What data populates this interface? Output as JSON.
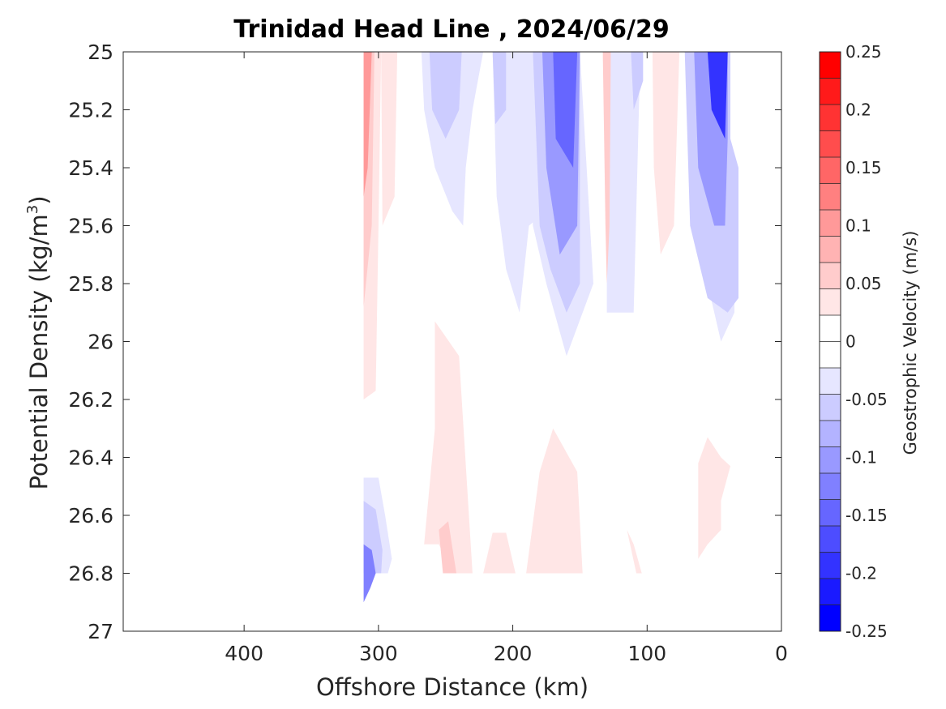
{
  "chart_data": {
    "type": "contour",
    "title": "Trinidad Head Line , 2024/06/29",
    "xlabel": "Offshore Distance (km)",
    "ylabel": "Potential Density (kg/m3)",
    "ylabel_main": "Potential Density (kg/m",
    "ylabel_sup": "3",
    "ylabel_close": ")",
    "xlim": [
      490,
      0
    ],
    "x_reversed": true,
    "ylim": [
      25,
      27
    ],
    "y_reversed": true,
    "x_ticks": [
      400,
      300,
      200,
      100,
      0
    ],
    "x_tick_labels": [
      "400",
      "300",
      "200",
      "100",
      "0"
    ],
    "y_ticks": [
      25,
      25.2,
      25.4,
      25.6,
      25.8,
      26,
      26.2,
      26.4,
      26.6,
      26.8,
      27
    ],
    "y_tick_labels": [
      "25",
      "25.2",
      "25.4",
      "25.6",
      "25.8",
      "26",
      "26.2",
      "26.4",
      "26.6",
      "26.8",
      "27"
    ],
    "colorbar": {
      "label": "Geostrophic Velocity (m/s)",
      "range": [
        -0.25,
        0.25
      ],
      "levels": [
        0.25,
        0.225,
        0.2,
        0.175,
        0.15,
        0.125,
        0.1,
        0.075,
        0.05,
        0.025,
        0,
        -0.025,
        -0.05,
        -0.075,
        -0.1,
        -0.125,
        -0.15,
        -0.175,
        -0.2,
        -0.225,
        -0.25
      ],
      "tick_values": [
        0.25,
        0.2,
        0.15,
        0.1,
        0.05,
        0,
        -0.05,
        -0.1,
        -0.15,
        -0.2,
        -0.25
      ],
      "tick_labels": [
        "0.25",
        "0.2",
        "0.15",
        "0.1",
        "0.05",
        "0",
        "-0.05",
        "-0.1",
        "-0.15",
        "-0.2",
        "-0.25"
      ],
      "colors": [
        "#ff0000",
        "#ff1a1a",
        "#ff3333",
        "#ff4d4d",
        "#ff6666",
        "#ff8080",
        "#ff9999",
        "#ffb3b3",
        "#ffcccc",
        "#ffe6e6",
        "#ffffff",
        "#ffffff",
        "#e6e6ff",
        "#ccccff",
        "#b3b3ff",
        "#9999ff",
        "#8080ff",
        "#6666ff",
        "#4d4dff",
        "#3333ff",
        "#1a1aff",
        "#0000ff"
      ]
    },
    "regions": [
      {
        "name": "red-band-310-west",
        "color": "#ffe6e6",
        "points": [
          [
            311,
            25
          ],
          [
            298,
            25
          ],
          [
            300,
            25.6
          ],
          [
            302,
            26.17
          ],
          [
            311,
            26.2
          ]
        ]
      },
      {
        "name": "red-band-310-mid",
        "color": "#ffcccc",
        "points": [
          [
            311,
            25
          ],
          [
            303,
            25
          ],
          [
            305,
            25.6
          ],
          [
            311,
            25.88
          ]
        ]
      },
      {
        "name": "red-band-310-core",
        "color": "#ff9999",
        "points": [
          [
            311,
            25
          ],
          [
            305,
            25
          ],
          [
            308,
            25.4
          ],
          [
            311,
            25.5
          ]
        ]
      },
      {
        "name": "red-band-290",
        "color": "#ffe6e6",
        "points": [
          [
            298,
            25
          ],
          [
            286,
            25
          ],
          [
            288,
            25.5
          ],
          [
            297,
            25.6
          ]
        ]
      },
      {
        "name": "blue-250",
        "color": "#e6e6ff",
        "points": [
          [
            270,
            25
          ],
          [
            188,
            25
          ],
          [
            185,
            25.6
          ],
          [
            175,
            25.8
          ],
          [
            160,
            26.05
          ],
          [
            140,
            25.8
          ],
          [
            150,
            25
          ],
          [
            130,
            25
          ],
          [
            130,
            25.9
          ],
          [
            110,
            25.9
          ],
          [
            105,
            25
          ],
          [
            70,
            25
          ],
          [
            60,
            25.7
          ],
          [
            45,
            26.0
          ],
          [
            35,
            25.9
          ],
          [
            35,
            25.4
          ],
          [
            45,
            25.3
          ],
          [
            45,
            25
          ],
          [
            35,
            25
          ]
        ]
      },
      {
        "name": "blue-250-body",
        "color": "#e6e6ff",
        "points": [
          [
            268,
            25
          ],
          [
            266,
            25.2
          ],
          [
            258,
            25.4
          ],
          [
            245,
            25.55
          ],
          [
            237,
            25.6
          ],
          [
            235,
            25.4
          ],
          [
            230,
            25.2
          ],
          [
            222,
            25
          ],
          [
            215,
            25
          ],
          [
            212,
            25.5
          ],
          [
            205,
            25.75
          ],
          [
            195,
            25.9
          ],
          [
            188,
            25.6
          ],
          [
            175,
            25.55
          ],
          [
            172,
            25.7
          ],
          [
            160,
            26.0
          ],
          [
            150,
            25.8
          ],
          [
            150,
            25.3
          ],
          [
            150,
            25
          ]
        ]
      },
      {
        "name": "blue-250-mid",
        "color": "#ccccff",
        "points": [
          [
            262,
            25
          ],
          [
            260,
            25.2
          ],
          [
            250,
            25.3
          ],
          [
            240,
            25.2
          ],
          [
            238,
            25
          ]
        ]
      },
      {
        "name": "blue-210",
        "color": "#ccccff",
        "points": [
          [
            215,
            25
          ],
          [
            213,
            25.25
          ],
          [
            205,
            25.2
          ],
          [
            205,
            25
          ]
        ]
      },
      {
        "name": "blue-160",
        "color": "#ccccff",
        "points": [
          [
            185,
            25
          ],
          [
            180,
            25.6
          ],
          [
            172,
            25.75
          ],
          [
            160,
            25.9
          ],
          [
            150,
            25.8
          ],
          [
            150,
            25
          ]
        ]
      },
      {
        "name": "blue-160-inner",
        "color": "#9999ff",
        "points": [
          [
            178,
            25
          ],
          [
            175,
            25.4
          ],
          [
            165,
            25.7
          ],
          [
            152,
            25.6
          ],
          [
            150,
            25
          ]
        ]
      },
      {
        "name": "blue-160-core",
        "color": "#6666ff",
        "points": [
          [
            170,
            25
          ],
          [
            168,
            25.3
          ],
          [
            155,
            25.4
          ],
          [
            152,
            25
          ]
        ]
      },
      {
        "name": "blue-110",
        "color": "#ccccff",
        "points": [
          [
            112,
            25
          ],
          [
            110,
            25.2
          ],
          [
            103,
            25.1
          ],
          [
            103,
            25
          ]
        ]
      },
      {
        "name": "blue-50",
        "color": "#ccccff",
        "points": [
          [
            72,
            25
          ],
          [
            68,
            25.6
          ],
          [
            55,
            25.85
          ],
          [
            40,
            25.9
          ],
          [
            32,
            25.85
          ],
          [
            32,
            25.4
          ],
          [
            38,
            25.3
          ],
          [
            38,
            25
          ]
        ]
      },
      {
        "name": "blue-50-inner",
        "color": "#9999ff",
        "points": [
          [
            65,
            25
          ],
          [
            62,
            25.4
          ],
          [
            50,
            25.6
          ],
          [
            42,
            25.6
          ],
          [
            40,
            25.3
          ],
          [
            40,
            25
          ]
        ]
      },
      {
        "name": "blue-50-core",
        "color": "#3333ff",
        "points": [
          [
            55,
            25
          ],
          [
            52,
            25.2
          ],
          [
            42,
            25.3
          ],
          [
            40,
            25
          ]
        ]
      },
      {
        "name": "red-130",
        "color": "#ffcccc",
        "points": [
          [
            133,
            25
          ],
          [
            127,
            25
          ],
          [
            128,
            25.6
          ],
          [
            130,
            25.8
          ],
          [
            131,
            25.6
          ]
        ]
      },
      {
        "name": "red-85",
        "color": "#ffcccc",
        "points": [
          [
            95,
            25
          ],
          [
            78,
            25
          ],
          [
            80,
            25.3
          ],
          [
            88,
            25.5
          ],
          [
            92,
            25.3
          ]
        ]
      },
      {
        "name": "red-85-outer",
        "color": "#ffe6e6",
        "points": [
          [
            96,
            25
          ],
          [
            76,
            25
          ],
          [
            80,
            25.6
          ],
          [
            90,
            25.7
          ],
          [
            95,
            25.4
          ]
        ]
      },
      {
        "name": "red-250-deep",
        "color": "#ffe6e6",
        "points": [
          [
            258,
            25.93
          ],
          [
            240,
            26.05
          ],
          [
            230,
            26.8
          ],
          [
            245,
            26.8
          ],
          [
            255,
            26.7
          ],
          [
            266,
            26.7
          ],
          [
            258,
            26.3
          ]
        ]
      },
      {
        "name": "red-250-deep-core",
        "color": "#ffcccc",
        "points": [
          [
            255,
            26.65
          ],
          [
            248,
            26.62
          ],
          [
            242,
            26.8
          ],
          [
            252,
            26.8
          ]
        ]
      },
      {
        "name": "red-200-deep",
        "color": "#ffe6e6",
        "points": [
          [
            215,
            26.66
          ],
          [
            205,
            26.66
          ],
          [
            198,
            26.8
          ],
          [
            222,
            26.8
          ]
        ]
      },
      {
        "name": "red-160-deep",
        "color": "#ffe6e6",
        "points": [
          [
            190,
            26.8
          ],
          [
            180,
            26.45
          ],
          [
            170,
            26.3
          ],
          [
            152,
            26.45
          ],
          [
            148,
            26.8
          ]
        ]
      },
      {
        "name": "red-110-deep",
        "color": "#ffe6e6",
        "points": [
          [
            115,
            26.65
          ],
          [
            108,
            26.8
          ],
          [
            104,
            26.8
          ],
          [
            110,
            26.7
          ]
        ]
      },
      {
        "name": "red-50-deep",
        "color": "#ffe6e6",
        "points": [
          [
            62,
            26.42
          ],
          [
            55,
            26.33
          ],
          [
            45,
            26.4
          ],
          [
            38,
            26.43
          ],
          [
            45,
            26.55
          ],
          [
            45,
            26.65
          ],
          [
            55,
            26.7
          ],
          [
            62,
            26.75
          ]
        ]
      },
      {
        "name": "blue-300-deep",
        "color": "#e6e6ff",
        "points": [
          [
            311,
            26.47
          ],
          [
            300,
            26.47
          ],
          [
            295,
            26.6
          ],
          [
            290,
            26.75
          ],
          [
            293,
            26.8
          ],
          [
            311,
            26.8
          ]
        ]
      },
      {
        "name": "blue-300-deep-mid",
        "color": "#ccccff",
        "points": [
          [
            311,
            26.55
          ],
          [
            302,
            26.58
          ],
          [
            297,
            26.72
          ],
          [
            298,
            26.8
          ],
          [
            311,
            26.8
          ]
        ]
      },
      {
        "name": "blue-300-deep-core",
        "color": "#8080ff",
        "points": [
          [
            311,
            26.7
          ],
          [
            305,
            26.72
          ],
          [
            302,
            26.8
          ],
          [
            306,
            26.85
          ],
          [
            311,
            26.9
          ]
        ]
      }
    ]
  }
}
